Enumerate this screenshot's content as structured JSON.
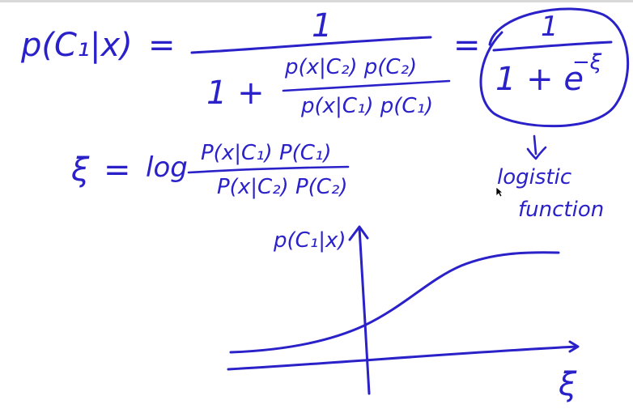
{
  "formula": {
    "lhs": "p(C₁|x)",
    "eq1": "=",
    "numerator": "1",
    "one_plus": "1 +",
    "inner_num": "p(x|C₂) p(C₂)",
    "inner_den": "p(x|C₁) p(C₁)",
    "eq2": "=",
    "sig_num": "1",
    "sig_den": "1 + e",
    "sig_exp": "−ξ"
  },
  "xi_def": {
    "xi": "ξ",
    "eq": "=",
    "log": "log",
    "num": "P(x|C₁) P(C₁)",
    "den": "P(x|C₂) P(C₂)"
  },
  "annotation": {
    "arrow": "⇓",
    "line1": "logistic",
    "line2": "function"
  },
  "plot": {
    "ylabel": "p(C₁|x)",
    "xlabel": "ξ"
  },
  "colors": {
    "ink": "#2a21c9",
    "background": "#ffffff"
  }
}
